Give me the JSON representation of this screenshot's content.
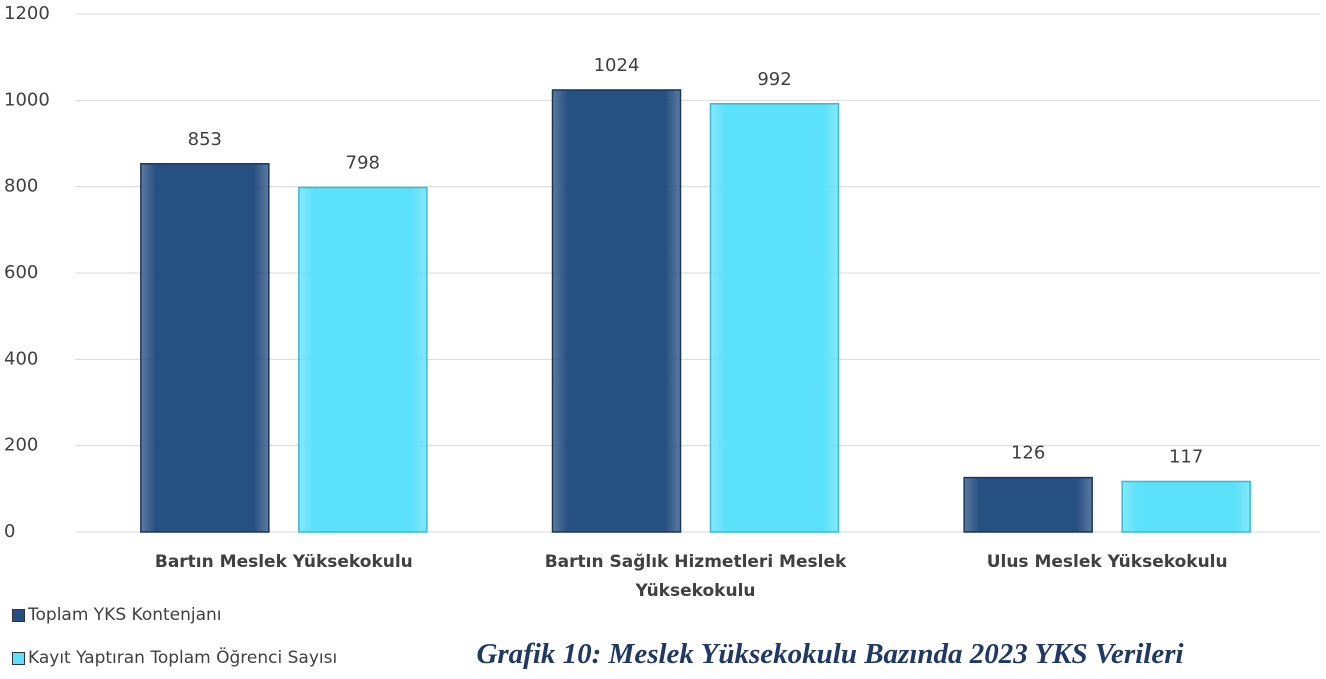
{
  "chart_data": {
    "type": "bar",
    "title": "Grafik 10: Meslek Yüksekokulu Bazında 2023 YKS Verileri",
    "categories": [
      "Bartın Meslek Yüksekokulu",
      "Bartın Sağlık Hizmetleri Meslek Yüksekokulu",
      "Ulus Meslek Yüksekokulu"
    ],
    "series": [
      {
        "name": "Toplam YKS Kontenjanı",
        "color": "#264f82",
        "values": [
          853,
          1024,
          126
        ]
      },
      {
        "name": "Kayıt Yaptıran Toplam Öğrenci Sayısı",
        "color": "#5ce1fb",
        "values": [
          798,
          992,
          117
        ]
      }
    ],
    "ylim": [
      0,
      1200
    ],
    "yticks": [
      0,
      200,
      400,
      600,
      800,
      1000,
      1200
    ],
    "grid": true,
    "legend": "bottom-left"
  }
}
